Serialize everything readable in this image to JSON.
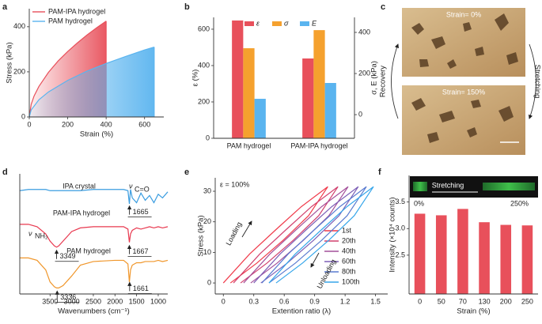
{
  "chart_data": [
    {
      "panel": "a",
      "type": "area",
      "xlabel": "Strain (%)",
      "ylabel": "Stress (kPa)",
      "xlim": [
        0,
        700
      ],
      "ylim": [
        0,
        480
      ],
      "xticks": [
        0,
        200,
        400,
        600
      ],
      "yticks": [
        0,
        200,
        400
      ],
      "legend": "upper left",
      "series": [
        {
          "name": "PAM-IPA hydrogel",
          "color": "#e8505b",
          "x": [
            0,
            10,
            25,
            50,
            100,
            150,
            200,
            250,
            300,
            350,
            400
          ],
          "values": [
            0,
            56,
            93,
            135,
            198,
            248,
            290,
            328,
            363,
            395,
            425
          ]
        },
        {
          "name": "PAM hydrogel",
          "color": "#5ab4ef",
          "x": [
            0,
            10,
            50,
            100,
            200,
            300,
            400,
            500,
            600,
            650
          ],
          "values": [
            0,
            31,
            76,
            111,
            162,
            203,
            237,
            268,
            297,
            310
          ]
        }
      ]
    },
    {
      "panel": "b",
      "type": "bar",
      "ylabel": "ε (%)",
      "y2label": "σ, E (kPa)",
      "categories": [
        "PAM hydrogel",
        "PAM-IPA hydrogel"
      ],
      "ylim": [
        0,
        665
      ],
      "yticks": [
        0,
        200,
        400,
        600
      ],
      "y2lim": [
        -115,
        473
      ],
      "y2ticks": [
        0,
        200,
        400
      ],
      "legend": "upper center",
      "series": [
        {
          "name": "ε",
          "color": "#e8505b",
          "values": [
            648,
            439
          ]
        },
        {
          "name": "σ",
          "color": "#f5a12e",
          "values": [
            323,
            411
          ],
          "axis": "y2"
        },
        {
          "name": "E",
          "color": "#5ab4ef",
          "values": [
            77,
            154
          ],
          "axis": "y2"
        }
      ]
    },
    {
      "panel": "d",
      "type": "line",
      "xlabel": "Wavenumbers (cm⁻¹)",
      "xlim": [
        4200,
        780
      ],
      "ylim": [
        0,
        100
      ],
      "xticks": [
        3500,
        3000,
        2500,
        2000,
        1500,
        1000
      ],
      "x": [
        4200,
        4000,
        3800,
        3600,
        3500,
        3400,
        3349,
        3300,
        3200,
        3000,
        2800,
        2500,
        2000,
        1800,
        1700,
        1667,
        1640,
        1600,
        1500,
        1400,
        1300,
        1200,
        1100,
        1000,
        900,
        780
      ],
      "series": [
        {
          "name": "IPA crystal",
          "color": "#3b9de0",
          "values": [
            86,
            87,
            87,
            87,
            86,
            86,
            86,
            86,
            86,
            86,
            86,
            87,
            87,
            87,
            86,
            75,
            87,
            80,
            76,
            84,
            78,
            82,
            76,
            83,
            80,
            85
          ],
          "peaks": [
            1665
          ]
        },
        {
          "name": "PAM-IPA hydrogel",
          "color": "#e8384f",
          "values": [
            58,
            58,
            56,
            50,
            44,
            40,
            39,
            40,
            44,
            52,
            55,
            56,
            56,
            56,
            54,
            43,
            50,
            53,
            55,
            54,
            55,
            56,
            55,
            56,
            55,
            56
          ],
          "peaks": [
            3349,
            1667
          ]
        },
        {
          "name": "PAM hydrogel",
          "color": "#f0962a",
          "values": [
            30,
            30,
            28,
            20,
            10,
            6,
            5,
            5,
            7,
            15,
            24,
            27,
            28,
            28,
            25,
            10,
            20,
            24,
            26,
            26,
            27,
            27,
            27,
            28,
            27,
            28
          ],
          "peaks": [
            3336,
            1661
          ]
        }
      ],
      "annotations": [
        "ν",
        "C=O",
        "ν",
        "NH₂"
      ]
    },
    {
      "panel": "e",
      "type": "line",
      "xlabel": "Extention ratio (λ)",
      "ylabel": "Stress (kPa)",
      "xlim": [
        -0.08,
        1.62
      ],
      "ylim": [
        -3.6,
        34.4
      ],
      "xticks": [
        0,
        0.3,
        0.6,
        0.9,
        1.2,
        1.5
      ],
      "yticks": [
        0,
        10,
        20,
        30
      ],
      "legend": "lower right",
      "series": [
        {
          "name": "1st",
          "color": "#f03a4a",
          "x": [
            0,
            0.26,
            0.52,
            0.77,
            1.03,
            0.84,
            0.59,
            0.33,
            0.07
          ],
          "values": [
            0,
            9.5,
            17.5,
            25,
            31.5,
            22,
            14,
            6.5,
            0
          ]
        },
        {
          "name": "20th",
          "color": "#d1406e",
          "x": [
            0.1,
            0.36,
            0.62,
            0.87,
            1.13,
            0.94,
            0.69,
            0.43,
            0.17
          ],
          "values": [
            0,
            9.5,
            17.5,
            25,
            31.5,
            22,
            14,
            6.5,
            0
          ]
        },
        {
          "name": "40th",
          "color": "#a4509a",
          "x": [
            0.2,
            0.46,
            0.72,
            0.97,
            1.23,
            1.04,
            0.79,
            0.53,
            0.27
          ],
          "values": [
            0,
            9.5,
            17.5,
            25,
            31.5,
            22,
            14,
            6.5,
            0
          ]
        },
        {
          "name": "60th",
          "color": "#7d5fb6",
          "x": [
            0.3,
            0.56,
            0.82,
            1.07,
            1.33,
            1.14,
            0.89,
            0.63,
            0.37
          ],
          "values": [
            0,
            9.5,
            17.5,
            25,
            31.5,
            22,
            14,
            6.5,
            0
          ]
        },
        {
          "name": "80th",
          "color": "#5a7bd0",
          "x": [
            0.38,
            0.64,
            0.9,
            1.15,
            1.41,
            1.22,
            0.97,
            0.71,
            0.45
          ],
          "values": [
            0,
            9.5,
            17.5,
            25,
            31.5,
            22,
            14,
            6.5,
            0
          ]
        },
        {
          "name": "100th",
          "color": "#36a6ea",
          "x": [
            0.45,
            0.71,
            0.97,
            1.22,
            1.48,
            1.29,
            1.04,
            0.78,
            0.52
          ],
          "values": [
            0,
            9.5,
            17.5,
            25,
            31.5,
            22,
            14,
            6.5,
            0
          ]
        }
      ],
      "annotations": [
        "ε = 100%",
        "Loading",
        "Unloading"
      ]
    },
    {
      "panel": "f",
      "type": "bar",
      "xlabel": "Strain (%)",
      "ylabel": "Intensity (×10⁴ counts)",
      "categories": [
        "0",
        "50",
        "70",
        "130",
        "200",
        "250"
      ],
      "values": [
        3.28,
        3.25,
        3.37,
        3.12,
        3.07,
        3.06
      ],
      "color": "#e8505b",
      "ylim": [
        1.77,
        4.0
      ],
      "yticks": [
        2.5,
        {
          "value": 3,
          "label": "3.0"
        },
        3.5
      ],
      "inset_labels": [
        "Stretching",
        "0%",
        "250%"
      ]
    }
  ],
  "micrograph": {
    "panel": "c",
    "top_label": "Strain= 0%",
    "bottom_label": "Strain= 150%",
    "left_label": "Recovery",
    "right_label": "Stretching"
  }
}
